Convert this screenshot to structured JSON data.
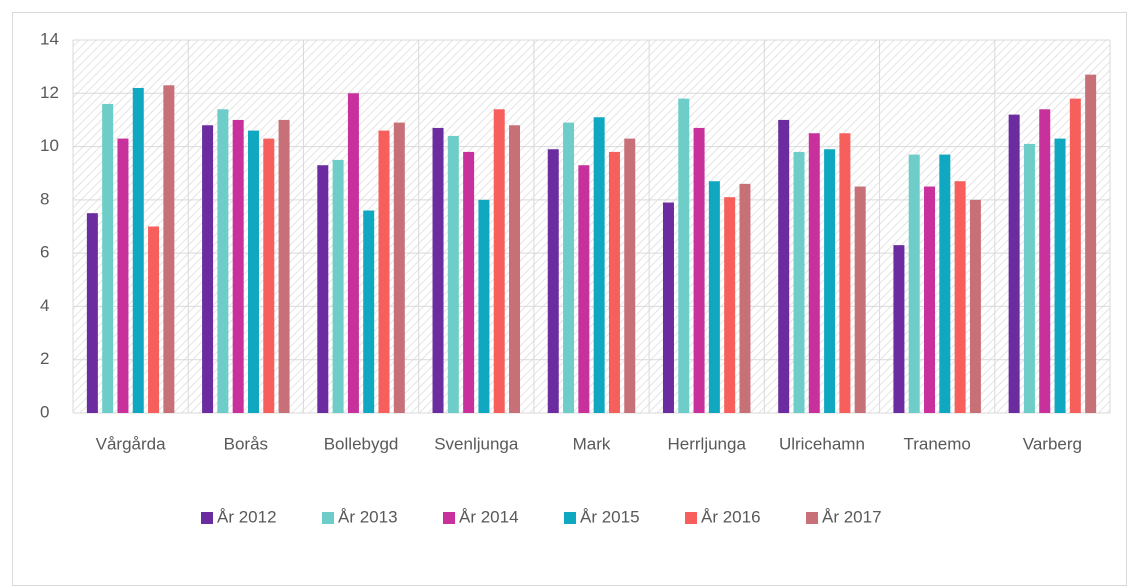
{
  "chart_data": {
    "type": "bar",
    "categories": [
      "Vårgårda",
      "Borås",
      "Bollebygd",
      "Svenljunga",
      "Mark",
      "Herrljunga",
      "Ulricehamn",
      "Tranemo",
      "Varberg"
    ],
    "series": [
      {
        "name": "År 2012",
        "color": "#6a2c9e",
        "values": [
          7.5,
          10.8,
          9.3,
          10.7,
          9.9,
          7.9,
          11.0,
          6.3,
          11.2
        ]
      },
      {
        "name": "År 2013",
        "color": "#6ecdc8",
        "values": [
          11.6,
          11.4,
          9.5,
          10.4,
          10.9,
          11.8,
          9.8,
          9.7,
          10.1
        ]
      },
      {
        "name": "År 2014",
        "color": "#c8309c",
        "values": [
          10.3,
          11.0,
          12.0,
          9.8,
          9.3,
          10.7,
          10.5,
          8.5,
          11.4
        ]
      },
      {
        "name": "År 2015",
        "color": "#0fa8c0",
        "values": [
          12.2,
          10.6,
          7.6,
          8.0,
          11.1,
          8.7,
          9.9,
          9.7,
          10.3
        ]
      },
      {
        "name": "År 2016",
        "color": "#f65f5b",
        "values": [
          7.0,
          10.3,
          10.6,
          11.4,
          9.8,
          8.1,
          10.5,
          8.7,
          11.8
        ]
      },
      {
        "name": "År 2017",
        "color": "#c87078",
        "values": [
          12.3,
          11.0,
          10.9,
          10.8,
          10.3,
          8.6,
          8.5,
          8.0,
          12.7
        ]
      }
    ],
    "ylim": [
      0,
      14
    ],
    "yticks": [
      0,
      2,
      4,
      6,
      8,
      10,
      12,
      14
    ],
    "grid": true,
    "legend": "bottom"
  }
}
